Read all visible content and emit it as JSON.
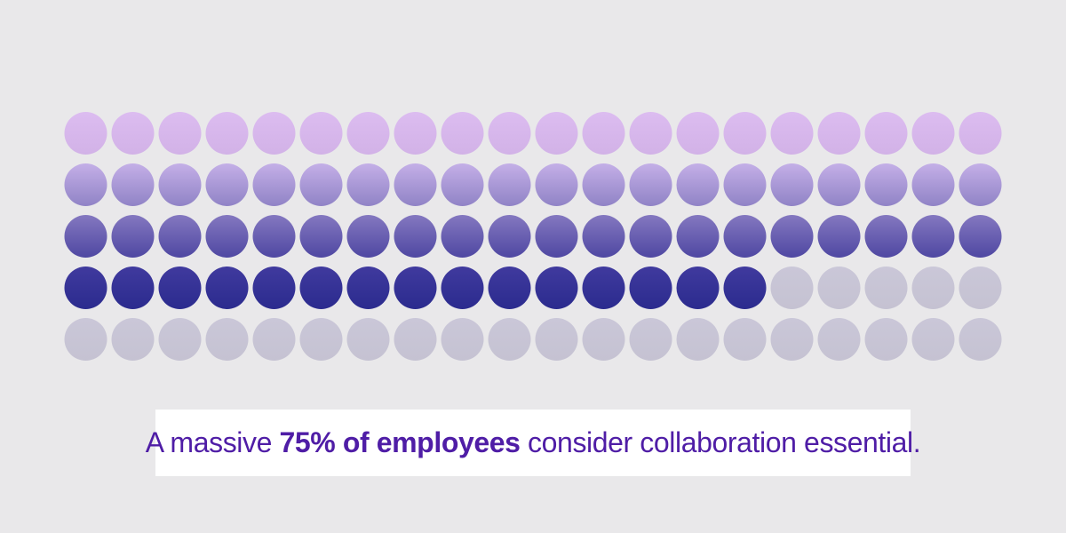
{
  "page": {
    "background_color": "#e9e8ea"
  },
  "chart_data": {
    "type": "pictogram",
    "title": "A massive 75% of employees consider collaboration essential.",
    "value_percent": 75,
    "total_dots": 100,
    "filled_dots": 75,
    "columns": 20,
    "rows": 5,
    "fill_direction": "top-to-bottom, left-to-right",
    "row_gradients": [
      [
        "#dcbcf0",
        "#d2b2e7"
      ],
      [
        "#c4afe7",
        "#9083c6"
      ],
      [
        "#8478c0",
        "#4f48a2"
      ],
      [
        "#403a9e",
        "#2b2b8e"
      ]
    ],
    "unfilled_gradient": [
      "#cac7d8",
      "#c5c2d2"
    ],
    "legend_position": "none",
    "grid": "off"
  },
  "caption": {
    "prefix": "A massive ",
    "highlight": "75% of employees",
    "suffix": " consider collaboration essential.",
    "text_color": "#4f1da6",
    "box_color": "#ffffff"
  }
}
